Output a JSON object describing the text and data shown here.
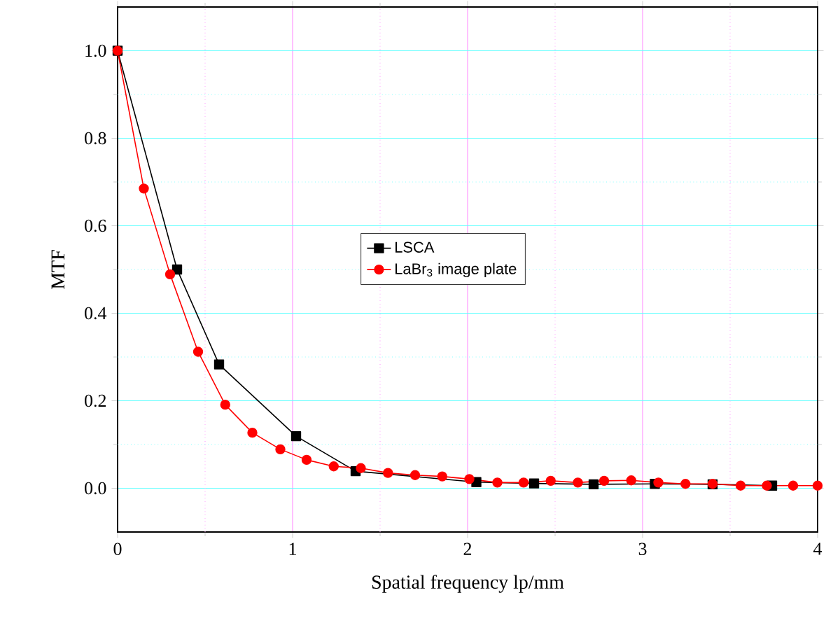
{
  "chart_data": {
    "type": "line",
    "xlabel": "Spatial frequency lp/mm",
    "ylabel": "MTF",
    "xlim": [
      0,
      4
    ],
    "ylim": [
      -0.1,
      1.1
    ],
    "xticks": [
      0,
      {
        "value": 0.5,
        "label": null
      },
      1,
      {
        "value": 1.5,
        "label": null
      },
      2,
      {
        "value": 2.5,
        "label": null
      },
      3,
      {
        "value": 3.5,
        "label": null
      },
      4
    ],
    "yticks": [
      {
        "value": 0,
        "label": "0.0"
      },
      {
        "value": 0.1,
        "label": null
      },
      {
        "value": 0.2,
        "label": "0.2"
      },
      {
        "value": 0.3,
        "label": null
      },
      {
        "value": 0.4,
        "label": "0.4"
      },
      {
        "value": 0.5,
        "label": null
      },
      {
        "value": 0.6,
        "label": "0.6"
      },
      {
        "value": 0.7,
        "label": null
      },
      {
        "value": 0.8,
        "label": "0.8"
      },
      {
        "value": 0.9,
        "label": null
      },
      {
        "value": 1,
        "label": "1.0"
      }
    ],
    "grid": true,
    "legend": "center",
    "series": [
      {
        "name": "LSCA",
        "color": "#000000",
        "marker": "square",
        "x": [
          0,
          0.34,
          0.58,
          1.02,
          1.36,
          2.05,
          2.38,
          2.72,
          3.07,
          3.4,
          3.74
        ],
        "values": [
          1.0,
          0.5,
          0.283,
          0.119,
          0.039,
          0.014,
          0.011,
          0.009,
          0.01,
          0.009,
          0.006
        ]
      },
      {
        "name": "LaBr$_{3}$ image plate",
        "color": "#ff0000",
        "marker": "circle",
        "x": [
          0,
          0.15,
          0.3,
          0.46,
          0.615,
          0.77,
          0.93,
          1.08,
          1.235,
          1.39,
          1.545,
          1.7,
          1.855,
          2.01,
          2.17,
          2.32,
          2.475,
          2.63,
          2.78,
          2.935,
          3.09,
          3.245,
          3.4,
          3.56,
          3.71,
          3.86,
          4.0
        ],
        "values": [
          1.0,
          0.685,
          0.489,
          0.312,
          0.191,
          0.127,
          0.089,
          0.065,
          0.05,
          0.046,
          0.035,
          0.03,
          0.027,
          0.021,
          0.013,
          0.013,
          0.017,
          0.013,
          0.017,
          0.018,
          0.013,
          0.01,
          0.01,
          0.006,
          0.006,
          0.006,
          0.006
        ]
      }
    ]
  }
}
